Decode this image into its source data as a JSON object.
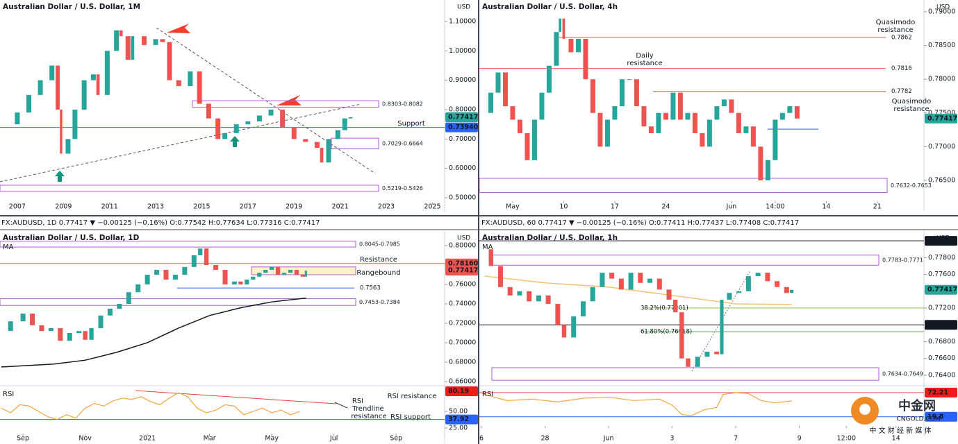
{
  "chart_data": [
    {
      "type": "candles",
      "title": "Australian Dollar / U.S. Dollar, 1M",
      "unit": "USD",
      "xlim": [
        2006.25,
        2025.53
      ],
      "xticks": [
        2007,
        2009,
        2011,
        2013,
        2015,
        2017,
        2019,
        2021,
        2023,
        2025
      ],
      "ylim": [
        0.4835,
        1.1732
      ],
      "yticks": [
        {
          "value": 0.5,
          "label": "0.50000"
        },
        {
          "value": 0.6,
          "label": "0.60000"
        },
        {
          "value": 0.7,
          "label": "0.70000"
        },
        {
          "value": 0.8,
          "label": "0.80000"
        },
        {
          "value": 0.9,
          "label": "0.90000"
        },
        {
          "value": 1.0,
          "label": "1.00000"
        },
        {
          "value": 1.1,
          "label": "1.10000"
        }
      ],
      "x": [
        2006.5,
        2007,
        2007.5,
        2008,
        2008.5,
        2008.75,
        2008.9,
        2009.2,
        2009.5,
        2009.9,
        2010.3,
        2010.5,
        2010.9,
        2011.3,
        2011.5,
        2011.8,
        2012,
        2012.5,
        2013,
        2013.3,
        2013.6,
        2014,
        2014.5,
        2014.9,
        2015.3,
        2015.7,
        2016,
        2016.5,
        2017,
        2017.5,
        2018,
        2018.5,
        2019,
        2019.5,
        2020,
        2020.2,
        2020.5,
        2020.9,
        2021.2,
        2021.45
      ],
      "values": [
        0.75,
        0.79,
        0.85,
        0.9,
        0.95,
        0.8,
        0.65,
        0.7,
        0.8,
        0.9,
        0.92,
        0.85,
        1.0,
        1.07,
        1.05,
        0.97,
        1.05,
        1.02,
        1.04,
        1.03,
        0.9,
        0.88,
        0.93,
        0.82,
        0.77,
        0.7,
        0.72,
        0.75,
        0.76,
        0.78,
        0.8,
        0.74,
        0.7,
        0.69,
        0.67,
        0.62,
        0.7,
        0.73,
        0.77,
        0.774
      ],
      "up_color": "#26a69a",
      "down_color": "#ef5350",
      "levels": [
        {
          "value": 0.7394,
          "color": "#2962ff"
        }
      ],
      "zones": [
        {
          "low": 0.8082,
          "high": 0.8303,
          "label": "0.8303-0.8082"
        },
        {
          "low": 0.6664,
          "high": 0.7029,
          "label": "0.7029-0.6664"
        },
        {
          "low": 0.5219,
          "high": 0.5426,
          "label": "0.5219-0.5426"
        }
      ],
      "tags": [
        {
          "value": 0.77417,
          "label": "0.77417",
          "color": "#26a69a"
        },
        {
          "value": 0.7394,
          "label": "0.73940",
          "color": "#2962ff"
        }
      ],
      "annotations": [
        "Support"
      ]
    },
    {
      "type": "candles",
      "title": "Australian Dollar / U.S. Dollar, 4h",
      "unit": "USD",
      "xlim": [
        -1.57,
        59.4
      ],
      "xticks": [
        {
          "value": 3,
          "label": "May"
        },
        10,
        17,
        24,
        {
          "value": 33,
          "label": "Jun"
        },
        {
          "value": 39,
          "label": "14:00"
        },
        {
          "value": 46,
          "label": "14"
        },
        {
          "value": 53,
          "label": "21"
        }
      ],
      "ylim": [
        0.76191,
        0.79175
      ],
      "yticks": [
        {
          "value": 0.765,
          "label": "0.76500"
        },
        {
          "value": 0.77,
          "label": "0.77000"
        },
        {
          "value": 0.775,
          "label": "0.77500"
        },
        {
          "value": 0.78,
          "label": "0.78000"
        },
        {
          "value": 0.785,
          "label": "0.78500"
        },
        {
          "value": 0.79,
          "label": "0.79000"
        }
      ],
      "x": [
        -1,
        0,
        1,
        2,
        3,
        4,
        5,
        6,
        7,
        8,
        9,
        9.5,
        10,
        11,
        12,
        13,
        14,
        15,
        16,
        17,
        18,
        19,
        20,
        21,
        22,
        23,
        24,
        25,
        26,
        27,
        28,
        29,
        30,
        31,
        32,
        33,
        34,
        35,
        36,
        37,
        38,
        39,
        40,
        41,
        42
      ],
      "values": [
        0.775,
        0.778,
        0.781,
        0.776,
        0.774,
        0.772,
        0.768,
        0.774,
        0.778,
        0.782,
        0.787,
        0.789,
        0.786,
        0.784,
        0.786,
        0.78,
        0.775,
        0.77,
        0.774,
        0.776,
        0.78,
        0.78,
        0.776,
        0.773,
        0.772,
        0.775,
        0.774,
        0.778,
        0.774,
        0.775,
        0.772,
        0.77,
        0.774,
        0.776,
        0.777,
        0.775,
        0.772,
        0.773,
        0.77,
        0.765,
        0.768,
        0.774,
        0.775,
        0.776,
        0.77417
      ],
      "up_color": "#26a69a",
      "down_color": "#ef5350",
      "levels": [
        {
          "value": 0.7862,
          "label": "0.7862",
          "color": "#ef5350"
        },
        {
          "value": 0.7816,
          "label": "0.7816",
          "color": "#ef5350"
        },
        {
          "value": 0.7782,
          "label": "0.7782",
          "color": "#ef5350"
        },
        {
          "value": 0.7726,
          "color": "#2962ff"
        }
      ],
      "zones": [
        {
          "low": 0.7632,
          "high": 0.7653,
          "label": "0.7632-0.7653"
        }
      ],
      "tags": [
        {
          "value": 0.77417,
          "label": "0.77417",
          "color": "#26a69a"
        }
      ],
      "annotations": [
        "Quasimodo",
        "resistance",
        "Daily",
        "resistance",
        "Quasimodo",
        "resistance"
      ]
    },
    {
      "type": "candles",
      "title": "Australian Dollar / U.S. Dollar, 1D",
      "unit": "USD",
      "subtitle": "FX:AUDUSD, 1D  0.77417 ▼ −0.00125 (−0.16%)  O:0.77542  H:0.77634  L:0.77316  C:0.77417",
      "xlim": [
        -0.74,
        13.56
      ],
      "xticks": [
        {
          "value": 0,
          "label": "Sep"
        },
        {
          "value": 2,
          "label": "Nov"
        },
        {
          "value": 4,
          "label": "2021"
        },
        {
          "value": 6,
          "label": "Mar"
        },
        {
          "value": 8,
          "label": "May"
        },
        {
          "value": 10,
          "label": "Jul"
        },
        {
          "value": 12,
          "label": "Sep"
        }
      ],
      "ylim": [
        0.6557,
        0.815
      ],
      "yticks": [
        {
          "value": 0.66,
          "label": "0.66000"
        },
        {
          "value": 0.68,
          "label": "0.68000"
        },
        {
          "value": 0.7,
          "label": "0.70000"
        },
        {
          "value": 0.72,
          "label": "0.72000"
        },
        {
          "value": 0.74,
          "label": "0.74000"
        },
        {
          "value": 0.76,
          "label": "0.76000"
        },
        {
          "value": 0.78,
          "label": "0.78000"
        },
        {
          "value": 0.8,
          "label": "0.80000"
        }
      ],
      "x": [
        -0.7,
        -0.4,
        0,
        0.3,
        0.6,
        0.9,
        1.2,
        1.5,
        1.8,
        2.0,
        2.2,
        2.5,
        2.8,
        3.1,
        3.4,
        3.7,
        4.0,
        4.3,
        4.6,
        4.9,
        5.2,
        5.5,
        5.7,
        5.9,
        6.2,
        6.5,
        6.8,
        7.0,
        7.2,
        7.4,
        7.6,
        7.8,
        8.0,
        8.2,
        8.4,
        8.6,
        8.8,
        9.0,
        9.1
      ],
      "values": [
        0.712,
        0.722,
        0.73,
        0.718,
        0.712,
        0.715,
        0.702,
        0.71,
        0.712,
        0.703,
        0.715,
        0.728,
        0.735,
        0.74,
        0.752,
        0.76,
        0.77,
        0.775,
        0.765,
        0.77,
        0.778,
        0.79,
        0.797,
        0.78,
        0.775,
        0.76,
        0.763,
        0.76,
        0.765,
        0.768,
        0.772,
        0.775,
        0.778,
        0.77,
        0.772,
        0.775,
        0.77,
        0.768,
        0.77417
      ],
      "up_color": "#26a69a",
      "down_color": "#ef5350",
      "ma": {
        "name": "MA",
        "color": "#131722",
        "x": [
          -0.7,
          1,
          2,
          3,
          4,
          5,
          6,
          7,
          8,
          9.1
        ],
        "values": [
          0.675,
          0.678,
          0.682,
          0.69,
          0.7,
          0.715,
          0.728,
          0.736,
          0.742,
          0.746
        ]
      },
      "levels": [
        {
          "value": 0.7816,
          "color": "#ef5350"
        },
        {
          "value": 0.7563,
          "label": "0.7563",
          "color": "#2962ff"
        }
      ],
      "zones": [
        {
          "low": 0.7985,
          "high": 0.8045,
          "label": "0.8045-0.7985"
        },
        {
          "low": 0.77,
          "high": 0.778,
          "fill": "#fbf3c8"
        },
        {
          "low": 0.7384,
          "high": 0.7453,
          "label": "0.7453-0.7384"
        }
      ],
      "tags": [
        {
          "value": 0.7816,
          "label": "0.78160",
          "color": "#ef5350"
        },
        {
          "value": 0.77417,
          "label": "0.77417",
          "color": "#ef5350"
        }
      ],
      "annotations": [
        "Resistance",
        "Rangebound"
      ],
      "rsi": {
        "name": "RSI",
        "color": "#f7a33b",
        "ylim": [
          16.7,
          86.5
        ],
        "yticks": [
          {
            "value": 50,
            "label": "50.00"
          },
          {
            "value": 25,
            "label": "25.00"
          }
        ],
        "x": [
          -0.7,
          -0.4,
          -0.1,
          0.2,
          0.5,
          0.8,
          1.1,
          1.4,
          1.7,
          2.0,
          2.3,
          2.6,
          2.9,
          3.2,
          3.5,
          3.8,
          4.1,
          4.4,
          4.7,
          5.0,
          5.3,
          5.6,
          5.9,
          6.2,
          6.5,
          6.8,
          7.1,
          7.4,
          7.7,
          8.0,
          8.3,
          8.6,
          8.9
        ],
        "values": [
          55,
          48,
          60,
          58,
          50,
          42,
          38,
          45,
          40,
          55,
          62,
          58,
          66,
          70,
          68,
          72,
          65,
          60,
          70,
          78,
          72,
          55,
          48,
          52,
          60,
          58,
          45,
          50,
          55,
          48,
          52,
          45,
          50
        ],
        "levels": [
          {
            "value": 37.92,
            "color": "#2962ff"
          }
        ],
        "tags": [
          {
            "value": 80.19,
            "label": "80.19",
            "color": "#ef1c1c"
          },
          {
            "value": 37.92,
            "label": "37.92",
            "color": "#2962ff"
          }
        ],
        "annotations": [
          "RSI resistance",
          "RSI",
          "Trendline",
          "resistance",
          "RSI support"
        ]
      }
    },
    {
      "type": "candles",
      "title": "Australian Dollar / U.S. Dollar, 1h",
      "unit": "USD",
      "subtitle": "FX:AUDUSD, 60  0.77417 ▼ −0.00125 (−0.16%)  O:0.77411  H:0.77437  L:0.77408  C:0.77417",
      "xlim": [
        -0.033,
        6.96
      ],
      "xticks": [
        {
          "value": 0,
          "label": "6"
        },
        {
          "value": 1,
          "label": "28"
        },
        {
          "value": 2,
          "label": "Jun"
        },
        {
          "value": 3,
          "label": "3"
        },
        {
          "value": 4,
          "label": "7"
        },
        {
          "value": 5,
          "label": "9"
        },
        {
          "value": 5.74,
          "label": "12:00"
        },
        {
          "value": 6.52,
          "label": "14"
        }
      ],
      "ylim": [
        0.76275,
        0.78117
      ],
      "yticks": [
        {
          "value": 0.764,
          "label": "0.76400"
        },
        {
          "value": 0.766,
          "label": "0.76600"
        },
        {
          "value": 0.768,
          "label": "0.76800"
        },
        {
          "value": 0.772,
          "label": "0.77200"
        },
        {
          "value": 0.774,
          "label": "0.77400"
        },
        {
          "value": 0.776,
          "label": "0.77600"
        },
        {
          "value": 0.778,
          "label": "0.77800"
        }
      ],
      "x": [
        0.05,
        0.15,
        0.3,
        0.45,
        0.6,
        0.75,
        0.9,
        1.05,
        1.2,
        1.3,
        1.45,
        1.6,
        1.75,
        1.9,
        2.05,
        2.2,
        2.35,
        2.5,
        2.65,
        2.8,
        2.95,
        3.05,
        3.15,
        3.25,
        3.4,
        3.55,
        3.7,
        3.78,
        3.9,
        4.05,
        4.2,
        4.35,
        4.5,
        4.65,
        4.8,
        4.88
      ],
      "values": [
        0.779,
        0.777,
        0.7745,
        0.7735,
        0.774,
        0.7728,
        0.7735,
        0.7725,
        0.77,
        0.7685,
        0.771,
        0.7728,
        0.7745,
        0.7762,
        0.7755,
        0.7742,
        0.7762,
        0.775,
        0.7755,
        0.7742,
        0.773,
        0.7715,
        0.766,
        0.765,
        0.7662,
        0.7668,
        0.7665,
        0.773,
        0.7738,
        0.774,
        0.7758,
        0.7762,
        0.7752,
        0.7745,
        0.7738,
        0.77417
      ],
      "up_color": "#26a69a",
      "down_color": "#ef5350",
      "ma": {
        "name": "MA",
        "color": "#f5c26b",
        "x": [
          0.05,
          1,
          2,
          3,
          4,
          4.88
        ],
        "values": [
          0.7758,
          0.775,
          0.7745,
          0.7735,
          0.7725,
          0.7724
        ]
      },
      "levels": [
        {
          "value": 0.78,
          "color": "#131722"
        },
        {
          "value": 0.77,
          "color": "#131722"
        },
        {
          "value": 0.77201,
          "label": "38.2%(0.77201)",
          "color": "#8bc34a"
        },
        {
          "value": 0.76918,
          "label": "61.80%(0.76918)",
          "color": "#4caf50"
        }
      ],
      "zones": [
        {
          "low": 0.7771,
          "high": 0.7783,
          "label": "0.7783-0.7771"
        },
        {
          "low": 0.7634,
          "high": 0.7649,
          "label": "0.7634-0.7649"
        }
      ],
      "tags": [
        {
          "value": 0.78,
          "label": "0.78000",
          "color": "#131722"
        },
        {
          "value": 0.77417,
          "label": "0.77417",
          "color": "#26a69a"
        },
        {
          "value": 0.77,
          "label": "0.77000",
          "color": "#131722"
        }
      ],
      "annotations": [],
      "rsi": {
        "name": "RSI",
        "color": "#f7a33b",
        "ylim": [
          0,
          81
        ],
        "yticks": [],
        "x": [
          0,
          0.4,
          0.8,
          1.2,
          1.6,
          2.0,
          2.4,
          2.8,
          3.0,
          3.15,
          3.3,
          3.5,
          3.7,
          3.8,
          4.0,
          4.2,
          4.4,
          4.6,
          4.88
        ],
        "values": [
          70,
          55,
          58,
          52,
          60,
          62,
          55,
          58,
          45,
          25,
          22,
          35,
          40,
          68,
          72,
          70,
          55,
          50,
          54
        ],
        "levels": [
          {
            "value": 72.21,
            "color": "#ef5350"
          },
          {
            "value": 19.8,
            "color": "#2962ff"
          }
        ],
        "tags": [
          {
            "value": 72.21,
            "label": "72.21",
            "color": "#ef1c1c"
          },
          {
            "value": 19.8,
            "label": "19.8",
            "color": "#2962ff"
          }
        ],
        "annotations": []
      }
    }
  ],
  "watermark": {
    "name": "中金网",
    "site": "CNGOLD.COM",
    "slogan": "中 文 财 经 新 媒 体"
  }
}
